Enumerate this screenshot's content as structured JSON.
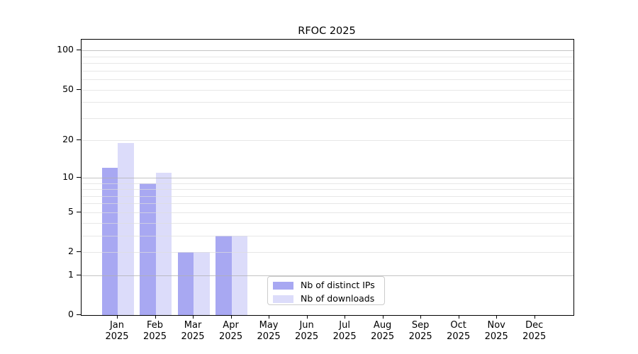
{
  "title": "RFOC 2025",
  "legend": {
    "items": [
      {
        "label": "Nb of distinct IPs",
        "color": "#a8a8f2"
      },
      {
        "label": "Nb of downloads",
        "color": "#dcdcfa"
      }
    ]
  },
  "colors": {
    "bar_distinct_ips": "#a8a8f2",
    "bar_downloads": "#dcdcfa",
    "grid_minor": "rgba(221,221,221,0.7)",
    "grid_major": "rgba(176,176,176,0.75)",
    "axis": "#000000",
    "legend_border": "#cccccc"
  },
  "chart_data": {
    "type": "bar",
    "title": "RFOC 2025",
    "categories": [
      "Jan",
      "Feb",
      "Mar",
      "Apr",
      "May",
      "Jun",
      "Jul",
      "Aug",
      "Sep",
      "Oct",
      "Nov",
      "Dec"
    ],
    "year_label": "2025",
    "series": [
      {
        "name": "Nb of distinct IPs",
        "color": "#a8a8f2",
        "values": [
          12,
          9,
          2,
          3,
          0,
          0,
          0,
          0,
          0,
          0,
          0,
          0
        ]
      },
      {
        "name": "Nb of downloads",
        "color": "#dcdcfa",
        "values": [
          19,
          11,
          2,
          3,
          0,
          0,
          0,
          0,
          0,
          0,
          0,
          0
        ]
      }
    ],
    "yscale": "log10(1+v)",
    "ylim": [
      0,
      121
    ],
    "yticks": [
      0,
      1,
      2,
      5,
      10,
      20,
      50,
      100
    ],
    "major_gridlines": [
      1,
      10,
      100
    ],
    "minor_gridlines": [
      2,
      3,
      4,
      5,
      6,
      7,
      8,
      9,
      20,
      30,
      40,
      50,
      60,
      70,
      80,
      90
    ],
    "grid": true,
    "legend_position": "lower-center",
    "xlabel": "",
    "ylabel": ""
  }
}
